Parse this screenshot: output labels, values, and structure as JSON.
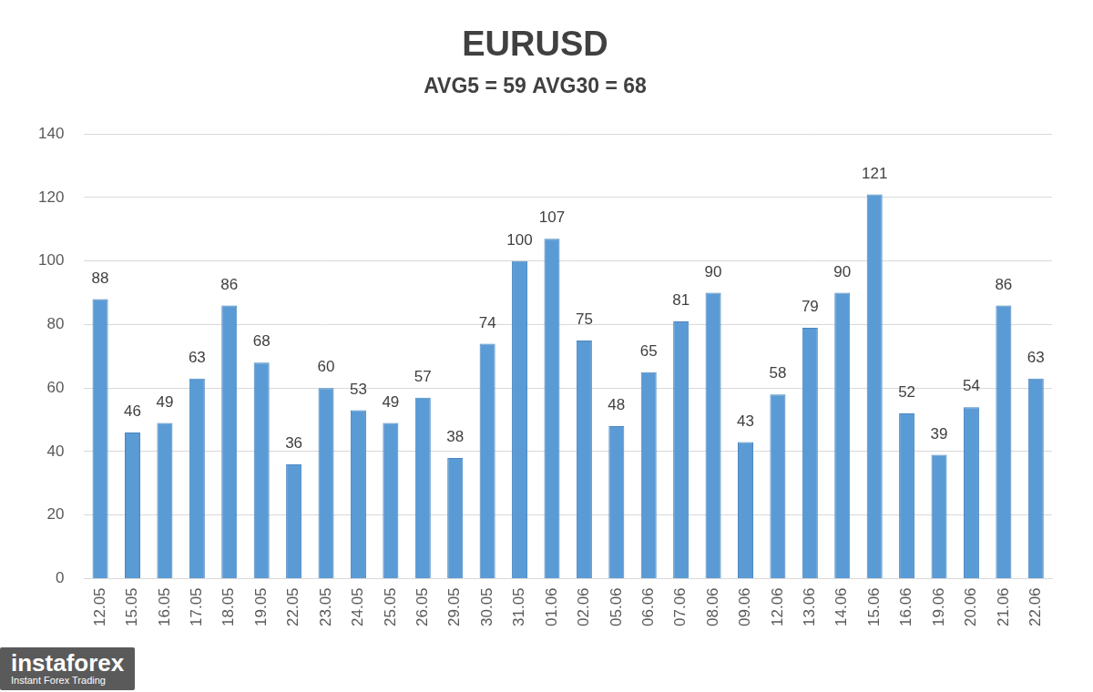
{
  "chart_data": {
    "type": "bar",
    "title": "EURUSD",
    "subtitle": "AVG5 = 59 AVG30 = 68",
    "categories": [
      "12.05",
      "15.05",
      "16.05",
      "17.05",
      "18.05",
      "19.05",
      "22.05",
      "23.05",
      "24.05",
      "25.05",
      "26.05",
      "29.05",
      "30.05",
      "31.05",
      "01.06",
      "02.06",
      "05.06",
      "06.06",
      "07.06",
      "08.06",
      "09.06",
      "12.06",
      "13.06",
      "14.06",
      "15.06",
      "16.06",
      "19.06",
      "20.06",
      "21.06",
      "22.06"
    ],
    "values": [
      88,
      46,
      49,
      63,
      86,
      68,
      36,
      60,
      53,
      49,
      57,
      38,
      74,
      100,
      107,
      75,
      48,
      65,
      81,
      90,
      43,
      58,
      79,
      90,
      121,
      52,
      39,
      54,
      86,
      63
    ],
    "color": "#5b9bd5",
    "ylim": [
      0,
      140
    ],
    "yticks": [
      0,
      20,
      40,
      60,
      80,
      100,
      120,
      140
    ],
    "grid": true,
    "data_labels": true,
    "annotations": [
      "instaforex",
      "Instant Forex Trading"
    ]
  }
}
